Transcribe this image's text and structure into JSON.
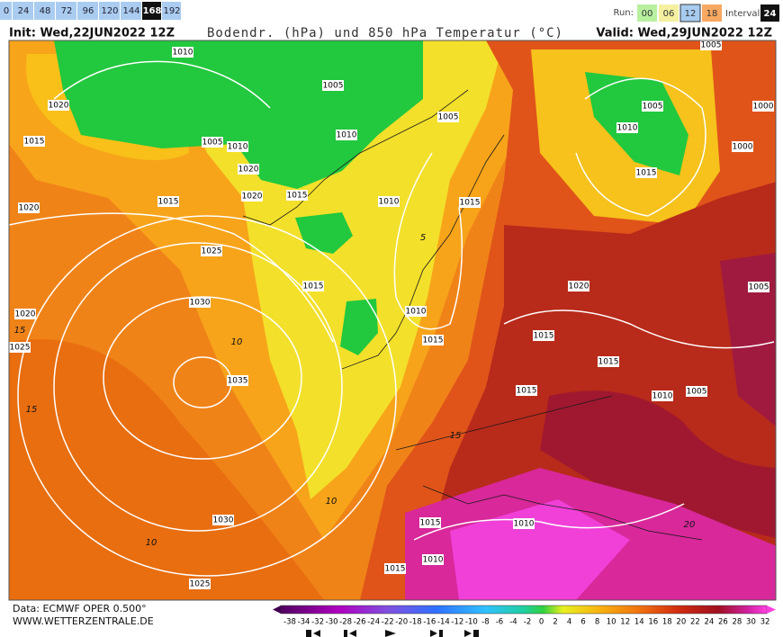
{
  "toolbar": {
    "hours": [
      0,
      24,
      48,
      72,
      96,
      120,
      144,
      168,
      192
    ],
    "selected_hour": 168,
    "run_label": "Run:",
    "runs": [
      "00",
      "06",
      "12",
      "18"
    ],
    "selected_run": "12",
    "interval_label": "Interval",
    "interval": 24
  },
  "header": {
    "init": "Init: Wed,22JUN2022 12Z",
    "title": "Bodendr. (hPa) und 850 hPa Temperatur (°C)",
    "valid": "Valid: Wed,29JUN2022 12Z"
  },
  "map": {
    "isobar_labels": [
      "1010",
      "1005",
      "1005",
      "1020",
      "1015",
      "1005",
      "1010",
      "1010",
      "1020",
      "1020",
      "1015",
      "1015",
      "1010",
      "1015",
      "1020",
      "1025",
      "1015",
      "1030",
      "1020",
      "1010",
      "1015",
      "1025",
      "1015",
      "1035",
      "1015",
      "1015",
      "1010",
      "1005",
      "1005",
      "1005",
      "1010",
      "1015",
      "1000",
      "1000",
      "1005",
      "1020",
      "1030",
      "1025",
      "1015",
      "1010",
      "1010",
      "1015"
    ],
    "temperature_labels": [
      "10",
      "15",
      "10",
      "15",
      "10",
      "5",
      "15",
      "20"
    ]
  },
  "footer": {
    "source": "Data: ECMWF OPER 0.500°",
    "website": "WWW.WETTERZENTRALE.DE",
    "scale": [
      -38,
      -34,
      -32,
      -30,
      -28,
      -26,
      -24,
      -22,
      -20,
      -18,
      -16,
      -14,
      -12,
      -10,
      -8,
      -6,
      -4,
      -2,
      0,
      2,
      4,
      6,
      8,
      10,
      12,
      14,
      16,
      18,
      20,
      22,
      24,
      26,
      28,
      30,
      32
    ]
  }
}
